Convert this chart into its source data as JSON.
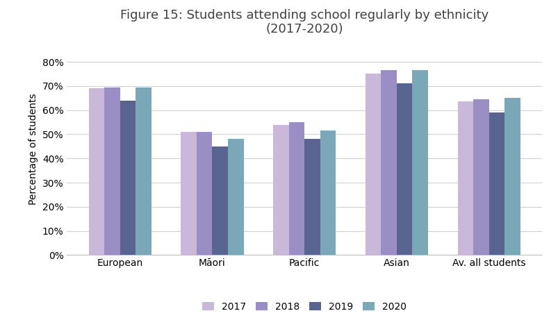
{
  "title": "Figure 15: Students attending school regularly by ethnicity\n(2017-2020)",
  "categories": [
    "European",
    "Māori",
    "Pacific",
    "Asian",
    "Av. all students"
  ],
  "years": [
    "2017",
    "2018",
    "2019",
    "2020"
  ],
  "values": {
    "2017": [
      0.69,
      0.51,
      0.54,
      0.75,
      0.635
    ],
    "2018": [
      0.695,
      0.51,
      0.55,
      0.765,
      0.645
    ],
    "2019": [
      0.64,
      0.45,
      0.48,
      0.71,
      0.59
    ],
    "2020": [
      0.695,
      0.48,
      0.515,
      0.765,
      0.65
    ]
  },
  "colors": {
    "2017": "#c9b8d8",
    "2018": "#9b8ec4",
    "2019": "#5a6490",
    "2020": "#7aa8b8"
  },
  "ylabel": "Percentage of students",
  "ylim": [
    0,
    0.88
  ],
  "yticks": [
    0.0,
    0.1,
    0.2,
    0.3,
    0.4,
    0.5,
    0.6,
    0.7,
    0.8
  ],
  "title_fontsize": 13,
  "legend_fontsize": 10,
  "tick_fontsize": 10,
  "ylabel_fontsize": 10,
  "background_color": "#ffffff",
  "bar_width": 0.17,
  "grid_color": "#d0d0d0",
  "spine_color": "#c0c0c0"
}
